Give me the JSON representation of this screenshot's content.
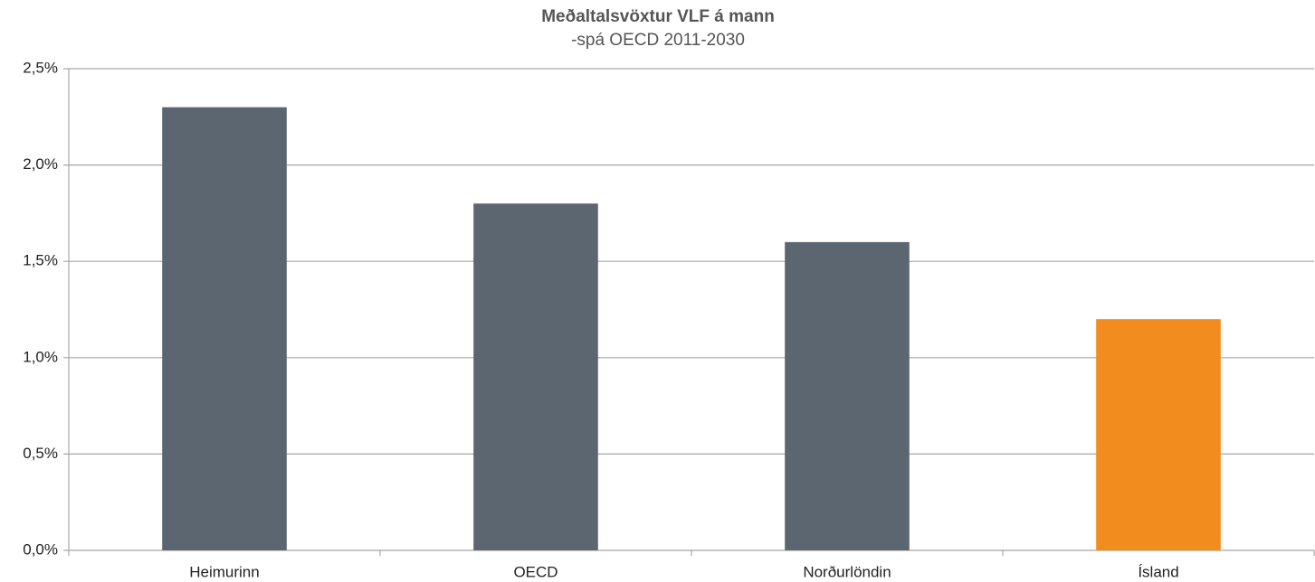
{
  "chart_data": {
    "type": "bar",
    "title": "Meðaltalsvöxtur VLF á mann",
    "subtitle": "-spá OECD 2011-2030",
    "categories": [
      "Heimurinn",
      "OECD",
      "Norðurlöndin",
      "Ísland"
    ],
    "values": [
      2.3,
      1.8,
      1.6,
      1.2
    ],
    "colors": [
      "#5c6670",
      "#5c6670",
      "#5c6670",
      "#f28c1e"
    ],
    "ylim": [
      0,
      2.5
    ],
    "yticks": [
      {
        "value": 0,
        "label": "0,0%"
      },
      {
        "value": 0.5,
        "label": "0,5%"
      },
      {
        "value": 1,
        "label": "1,0%"
      },
      {
        "value": 1.5,
        "label": "1,5%"
      },
      {
        "value": 2,
        "label": "2,0%"
      },
      {
        "value": 2.5,
        "label": "2,5%"
      }
    ],
    "grid": true
  }
}
